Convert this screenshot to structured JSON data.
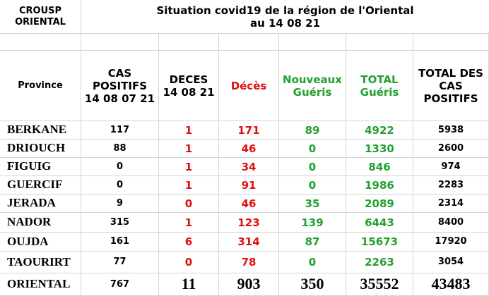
{
  "header": {
    "org": [
      "CROUSP",
      "ORIENTAL"
    ],
    "title": [
      "Situation covid19 de la région de l'Oriental",
      "au 14 08 21"
    ]
  },
  "table": {
    "columns": [
      [
        "Province"
      ],
      [
        "CAS",
        "POSITIFS",
        "14 08 07 21"
      ],
      [
        "DECES",
        "14 08 21"
      ],
      [
        "Décès"
      ],
      [
        "Nouveaux",
        "Guéris"
      ],
      [
        "TOTAL",
        "Guéris"
      ],
      [
        "TOTAL DES",
        "CAS",
        "POSITIFS"
      ]
    ],
    "rows": [
      [
        "BERKANE",
        117,
        1,
        171,
        89,
        4922,
        5938
      ],
      [
        "DRIOUCH",
        88,
        1,
        46,
        0,
        1330,
        2600
      ],
      [
        "FIGUIG",
        0,
        1,
        34,
        0,
        846,
        974
      ],
      [
        "GUERCIF",
        0,
        1,
        91,
        0,
        1986,
        2283
      ],
      [
        "JERADA",
        9,
        0,
        46,
        35,
        2089,
        2314
      ],
      [
        "NADOR",
        315,
        1,
        123,
        139,
        6443,
        8400
      ],
      [
        "OUJDA",
        161,
        6,
        314,
        87,
        15673,
        17920
      ],
      [
        "TAOURIRT",
        77,
        0,
        78,
        0,
        2263,
        3054
      ]
    ],
    "total": [
      "ORIENTAL",
      767,
      11,
      903,
      350,
      35552,
      43483
    ]
  }
}
